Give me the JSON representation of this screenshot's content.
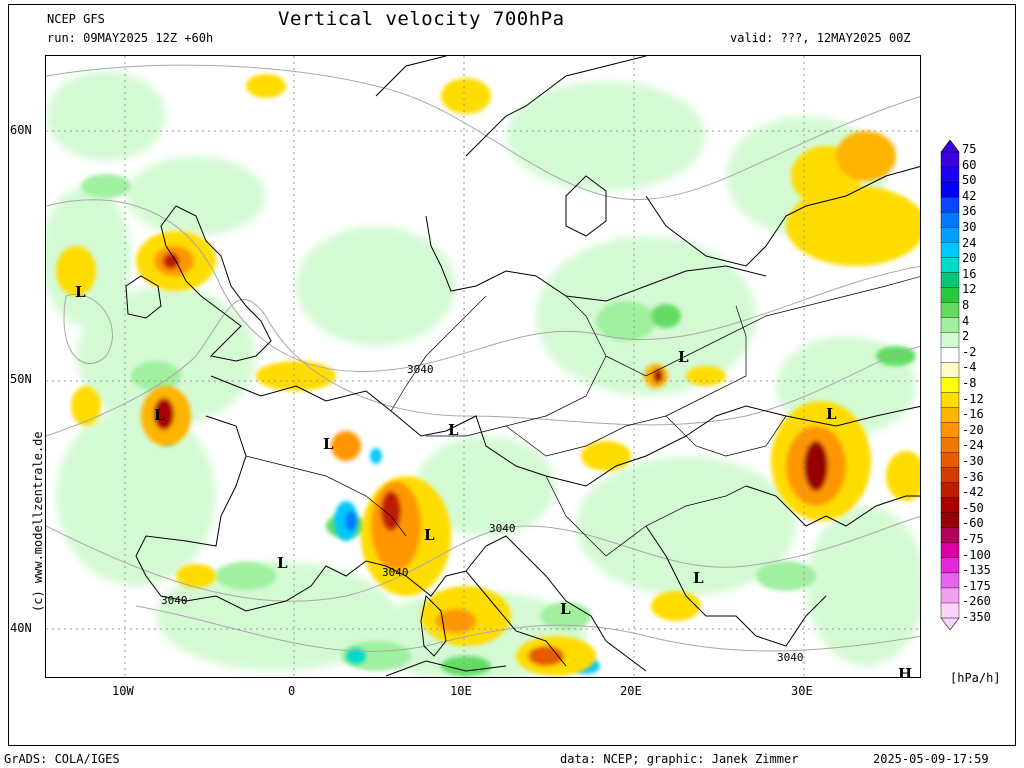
{
  "header": {
    "model": "NCEP GFS",
    "run": "run: 09MAY2025 12Z +60h",
    "title": "Vertical velocity 700hPa",
    "valid": "valid: ???, 12MAY2025 00Z"
  },
  "axes": {
    "lat_labels": [
      "60N",
      "50N",
      "40N"
    ],
    "lon_labels": [
      "10W",
      "0",
      "10E",
      "20E",
      "30E"
    ]
  },
  "map": {
    "contour_labels": [
      "3040",
      "3040",
      "3040",
      "3040",
      "3040"
    ],
    "pressure_marks": [
      "L",
      "L",
      "L",
      "L",
      "L",
      "L",
      "L",
      "L",
      "L",
      "L",
      "H"
    ]
  },
  "legend": {
    "labels": [
      "75",
      "60",
      "50",
      "42",
      "36",
      "30",
      "24",
      "20",
      "16",
      "12",
      "8",
      "4",
      "2",
      "-2",
      "-4",
      "-8",
      "-12",
      "-16",
      "-20",
      "-24",
      "-30",
      "-36",
      "-42",
      "-50",
      "-60",
      "-75",
      "-100",
      "-135",
      "-175",
      "-260",
      "-350"
    ],
    "colors": [
      "#3c00dc",
      "#1e00f0",
      "#0000ff",
      "#0a46ff",
      "#0078ff",
      "#00a0ff",
      "#00c8ff",
      "#00dcc8",
      "#00c87a",
      "#28c83c",
      "#64dc64",
      "#a0f0a0",
      "#d2fad2",
      "#ffffff",
      "#fffac8",
      "#ffff00",
      "#ffdc00",
      "#ffb400",
      "#ff9600",
      "#f07800",
      "#e65a00",
      "#d23c00",
      "#be1e00",
      "#aa0000",
      "#960000",
      "#b4005a",
      "#dc00a0",
      "#e628dc",
      "#e664f0",
      "#f0a0f0",
      "#fad2fa"
    ],
    "unit": "[hPa/h]"
  },
  "credits": {
    "watermark": "(c) www.modellzentrale.de",
    "grads": "GrADS: COLA/IGES",
    "data": "data: NCEP; graphic: Janek Zimmer",
    "timestamp": "2025-05-09-17:59"
  }
}
